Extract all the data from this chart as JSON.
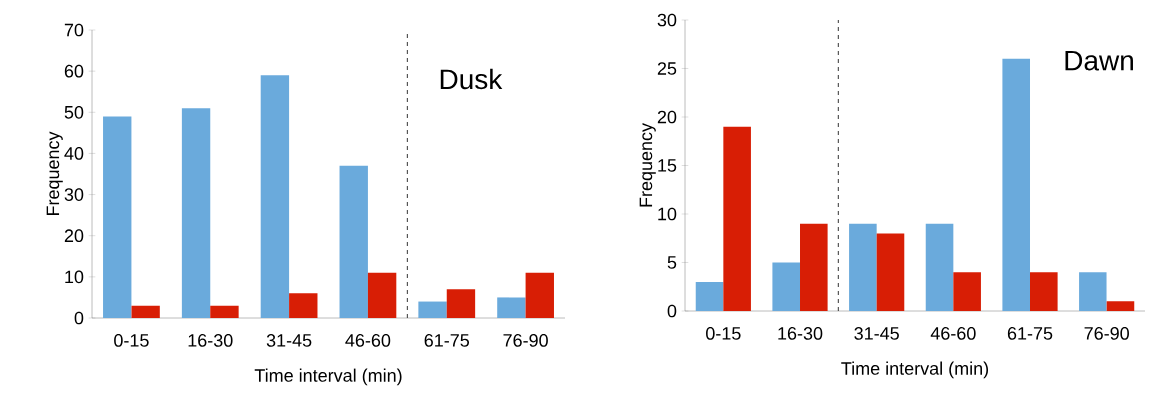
{
  "chart_data": [
    {
      "type": "bar",
      "annotations": [
        "Dusk"
      ],
      "xlabel": "Time interval (min)",
      "ylabel": "Frequency",
      "categories": [
        "0-15",
        "16-30",
        "31-45",
        "46-60",
        "61-75",
        "76-90"
      ],
      "series": [
        {
          "color": "#6aaadc",
          "values": [
            49,
            51,
            59,
            37,
            4,
            5
          ]
        },
        {
          "color": "#d81e05",
          "values": [
            3,
            3,
            6,
            11,
            7,
            11
          ]
        }
      ],
      "ylim": [
        0,
        70
      ],
      "yticks": [
        0,
        10,
        20,
        30,
        40,
        50,
        60,
        70
      ],
      "grid": false
    },
    {
      "type": "bar",
      "annotations": [
        "Dawn"
      ],
      "xlabel": "Time interval (min)",
      "ylabel": "Frequency",
      "categories": [
        "0-15",
        "16-30",
        "31-45",
        "46-60",
        "61-75",
        "76-90"
      ],
      "series": [
        {
          "color": "#6aaadc",
          "values": [
            3,
            5,
            9,
            9,
            26,
            4
          ]
        },
        {
          "color": "#d81e05",
          "values": [
            19,
            9,
            8,
            4,
            4,
            1
          ]
        }
      ],
      "ylim": [
        0,
        30
      ],
      "yticks": [
        0,
        5,
        10,
        15,
        20,
        25,
        30
      ],
      "grid": false
    }
  ]
}
